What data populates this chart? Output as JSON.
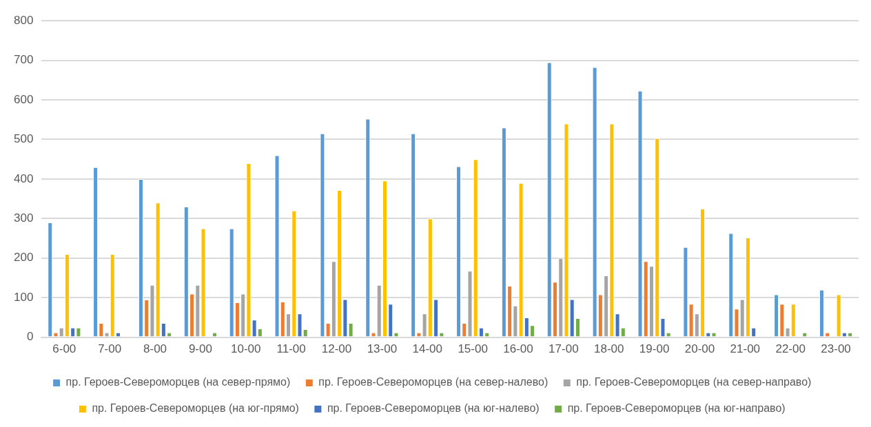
{
  "chart_data": {
    "type": "bar",
    "categories": [
      "6-00",
      "7-00",
      "8-00",
      "9-00",
      "10-00",
      "11-00",
      "12-00",
      "13-00",
      "14-00",
      "15-00",
      "16-00",
      "17-00",
      "18-00",
      "19-00",
      "20-00",
      "21-00",
      "22-00",
      "23-00"
    ],
    "series": [
      {
        "name": "пр. Героев-Североморцев (на север-прямо)",
        "color": "#5b9bd5",
        "values": [
          290,
          430,
          400,
          330,
          275,
          460,
          515,
          552,
          515,
          432,
          530,
          695,
          683,
          623,
          228,
          263,
          108,
          120
        ]
      },
      {
        "name": "пр. Героев-Североморцев (на север-налево)",
        "color": "#ed7d31",
        "values": [
          12,
          36,
          95,
          110,
          88,
          90,
          36,
          12,
          12,
          36,
          130,
          140,
          108,
          192,
          84,
          72,
          84,
          12
        ]
      },
      {
        "name": "пр. Героев-Североморцев (на север-направо)",
        "color": "#a5a5a5",
        "values": [
          24,
          12,
          132,
          132,
          110,
          60,
          192,
          132,
          60,
          168,
          80,
          200,
          156,
          180,
          60,
          96,
          24,
          0
        ]
      },
      {
        "name": "пр. Героев-Североморцев (на юг-прямо)",
        "color": "#ffc000",
        "values": [
          210,
          210,
          340,
          275,
          440,
          320,
          372,
          396,
          300,
          450,
          390,
          540,
          540,
          503,
          325,
          252,
          84,
          108
        ]
      },
      {
        "name": "пр. Героев-Североморцев (на юг-налево)",
        "color": "#4472c4",
        "values": [
          24,
          12,
          36,
          0,
          44,
          60,
          96,
          84,
          96,
          24,
          50,
          96,
          60,
          48,
          12,
          24,
          0,
          12
        ]
      },
      {
        "name": "пр. Героев-Североморцев (на юг-направо)",
        "color": "#70ad47",
        "values": [
          24,
          0,
          12,
          12,
          22,
          20,
          36,
          12,
          12,
          12,
          30,
          48,
          24,
          12,
          12,
          0,
          12,
          12
        ]
      }
    ],
    "ylim": [
      0,
      800
    ],
    "yticks": [
      0,
      100,
      200,
      300,
      400,
      500,
      600,
      700,
      800
    ],
    "grid": "y",
    "legend": "bottom"
  }
}
